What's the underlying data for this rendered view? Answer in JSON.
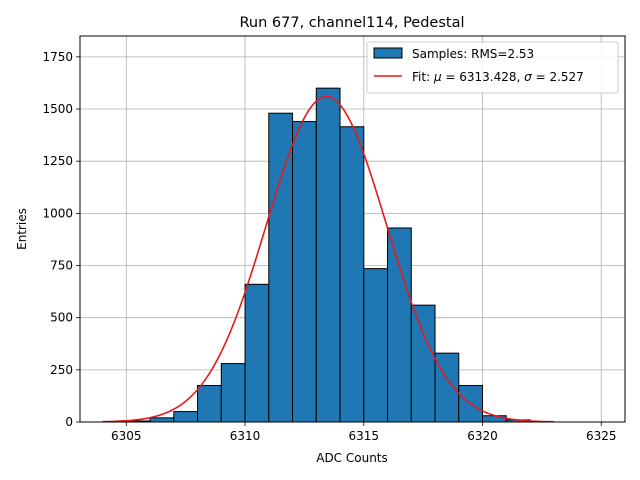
{
  "chart_data": {
    "type": "bar",
    "title": "Run 677, channel114, Pedestal",
    "xlabel": "ADC Counts",
    "ylabel": "Entries",
    "xlim": [
      6303.05,
      6326.0
    ],
    "ylim": [
      0,
      1850
    ],
    "xticks": [
      6305,
      6310,
      6315,
      6320,
      6325
    ],
    "yticks": [
      0,
      250,
      500,
      750,
      1000,
      1250,
      1500,
      1750
    ],
    "grid": true,
    "legend_position": "top-right",
    "histogram": {
      "name": "Samples: RMS=2.53",
      "color": "#1f77b4",
      "edgecolor": "#000000",
      "bins": [
        {
          "left": 6305,
          "right": 6306,
          "count": 5
        },
        {
          "left": 6306,
          "right": 6307,
          "count": 20
        },
        {
          "left": 6307,
          "right": 6308,
          "count": 50
        },
        {
          "left": 6308,
          "right": 6309,
          "count": 175
        },
        {
          "left": 6309,
          "right": 6310,
          "count": 280
        },
        {
          "left": 6310,
          "right": 6311,
          "count": 660
        },
        {
          "left": 6311,
          "right": 6312,
          "count": 1480
        },
        {
          "left": 6312,
          "right": 6313,
          "count": 1440
        },
        {
          "left": 6313,
          "right": 6314,
          "count": 1600
        },
        {
          "left": 6314,
          "right": 6315,
          "count": 1415
        },
        {
          "left": 6315,
          "right": 6316,
          "count": 735
        },
        {
          "left": 6316,
          "right": 6317,
          "count": 930
        },
        {
          "left": 6317,
          "right": 6318,
          "count": 560
        },
        {
          "left": 6318,
          "right": 6319,
          "count": 330
        },
        {
          "left": 6319,
          "right": 6320,
          "count": 175
        },
        {
          "left": 6320,
          "right": 6321,
          "count": 30
        },
        {
          "left": 6321,
          "right": 6322,
          "count": 10
        }
      ]
    },
    "fit": {
      "label_prefix": "Fit: ",
      "mu_symbol": "μ",
      "mu_text": " = 6313.428, ",
      "sigma_symbol": "σ",
      "sigma_text": " = 2.527",
      "mu": 6313.428,
      "sigma": 2.527,
      "amplitude": 1560,
      "x_start": 6304,
      "x_end": 6323,
      "color": "#e41a1c"
    }
  }
}
